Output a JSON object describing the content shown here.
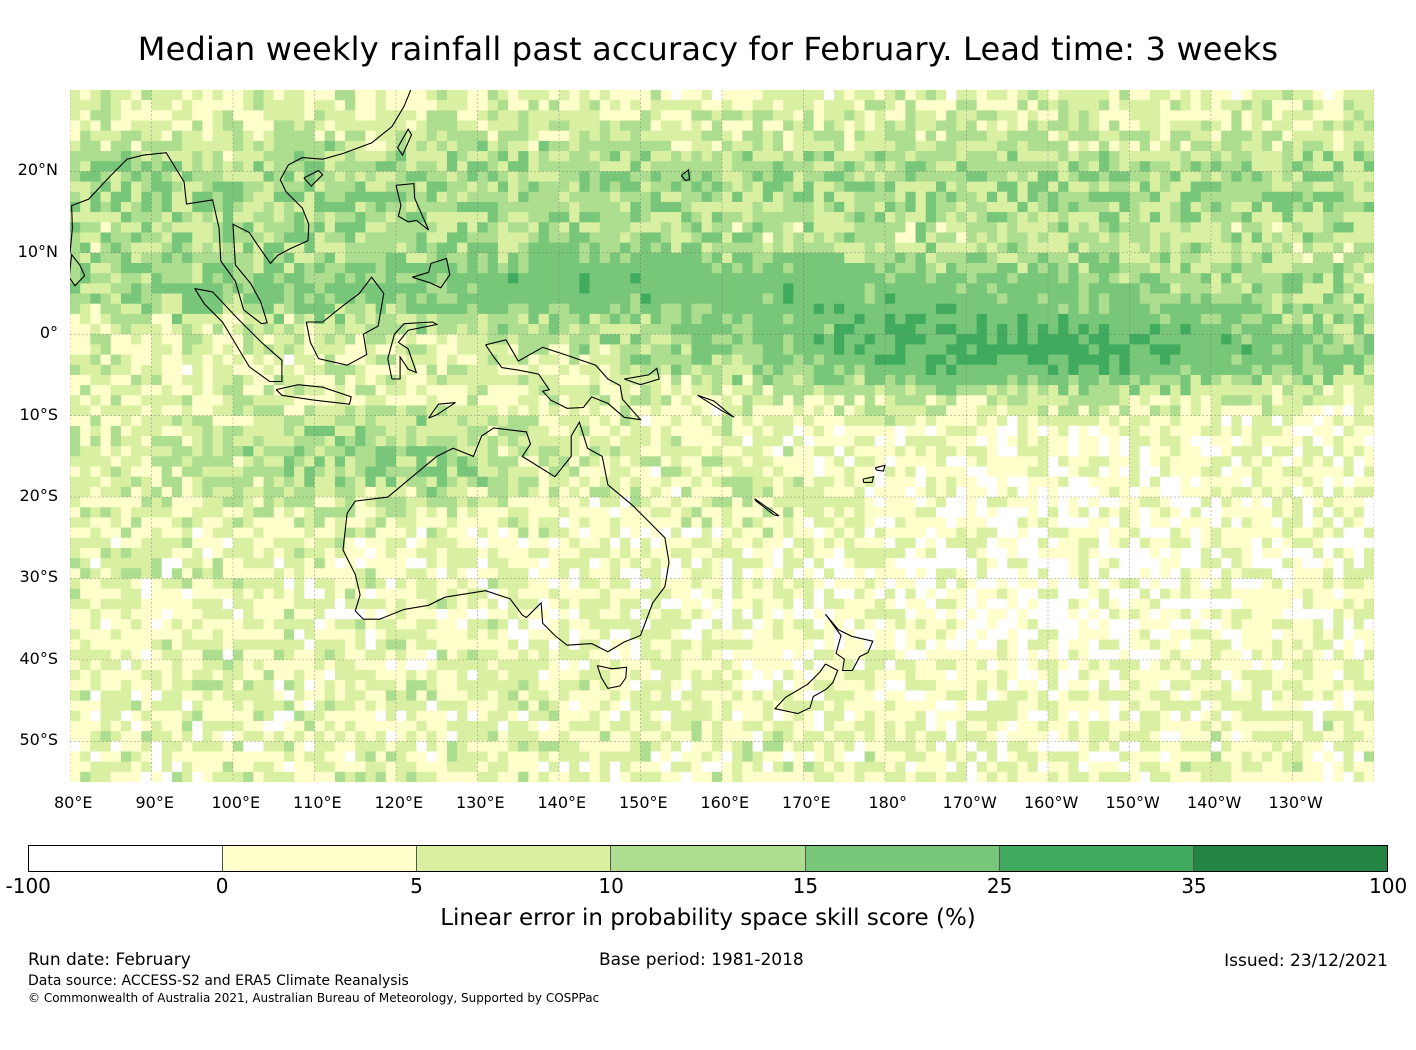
{
  "title": "Median weekly rainfall past accuracy for February. Lead time: 3 weeks",
  "map": {
    "lon_range": [
      80,
      240
    ],
    "lat_range": [
      -55,
      30
    ],
    "lat_labels": [
      "20°N",
      "10°N",
      "0°",
      "10°S",
      "20°S",
      "30°S",
      "40°S",
      "50°S"
    ],
    "lon_labels": [
      "80°E",
      "90°E",
      "100°E",
      "110°E",
      "120°E",
      "130°E",
      "140°E",
      "150°E",
      "160°E",
      "170°E",
      "180°",
      "170°W",
      "160°W",
      "150°W",
      "140°W",
      "130°W"
    ]
  },
  "legend": {
    "colors": [
      "#ffffff",
      "#ffffcc",
      "#d9f0a3",
      "#addd8e",
      "#78c679",
      "#41ab5d",
      "#238443"
    ],
    "ticks": [
      "-100",
      "0",
      "5",
      "10",
      "15",
      "25",
      "35",
      "100"
    ],
    "label": "Linear error in probability space skill score (%)"
  },
  "footer": {
    "run_date": "Run date: February",
    "base_period": "Base period: 1981-2018",
    "issued": "Issued: 23/12/2021",
    "data_source": "Data source: ACCESS-S2 and ERA5 Climate Reanalysis",
    "copyright": "© Commonwealth of Australia 2021, Australian Bureau of Meteorology, Supported by COSPPac"
  }
}
